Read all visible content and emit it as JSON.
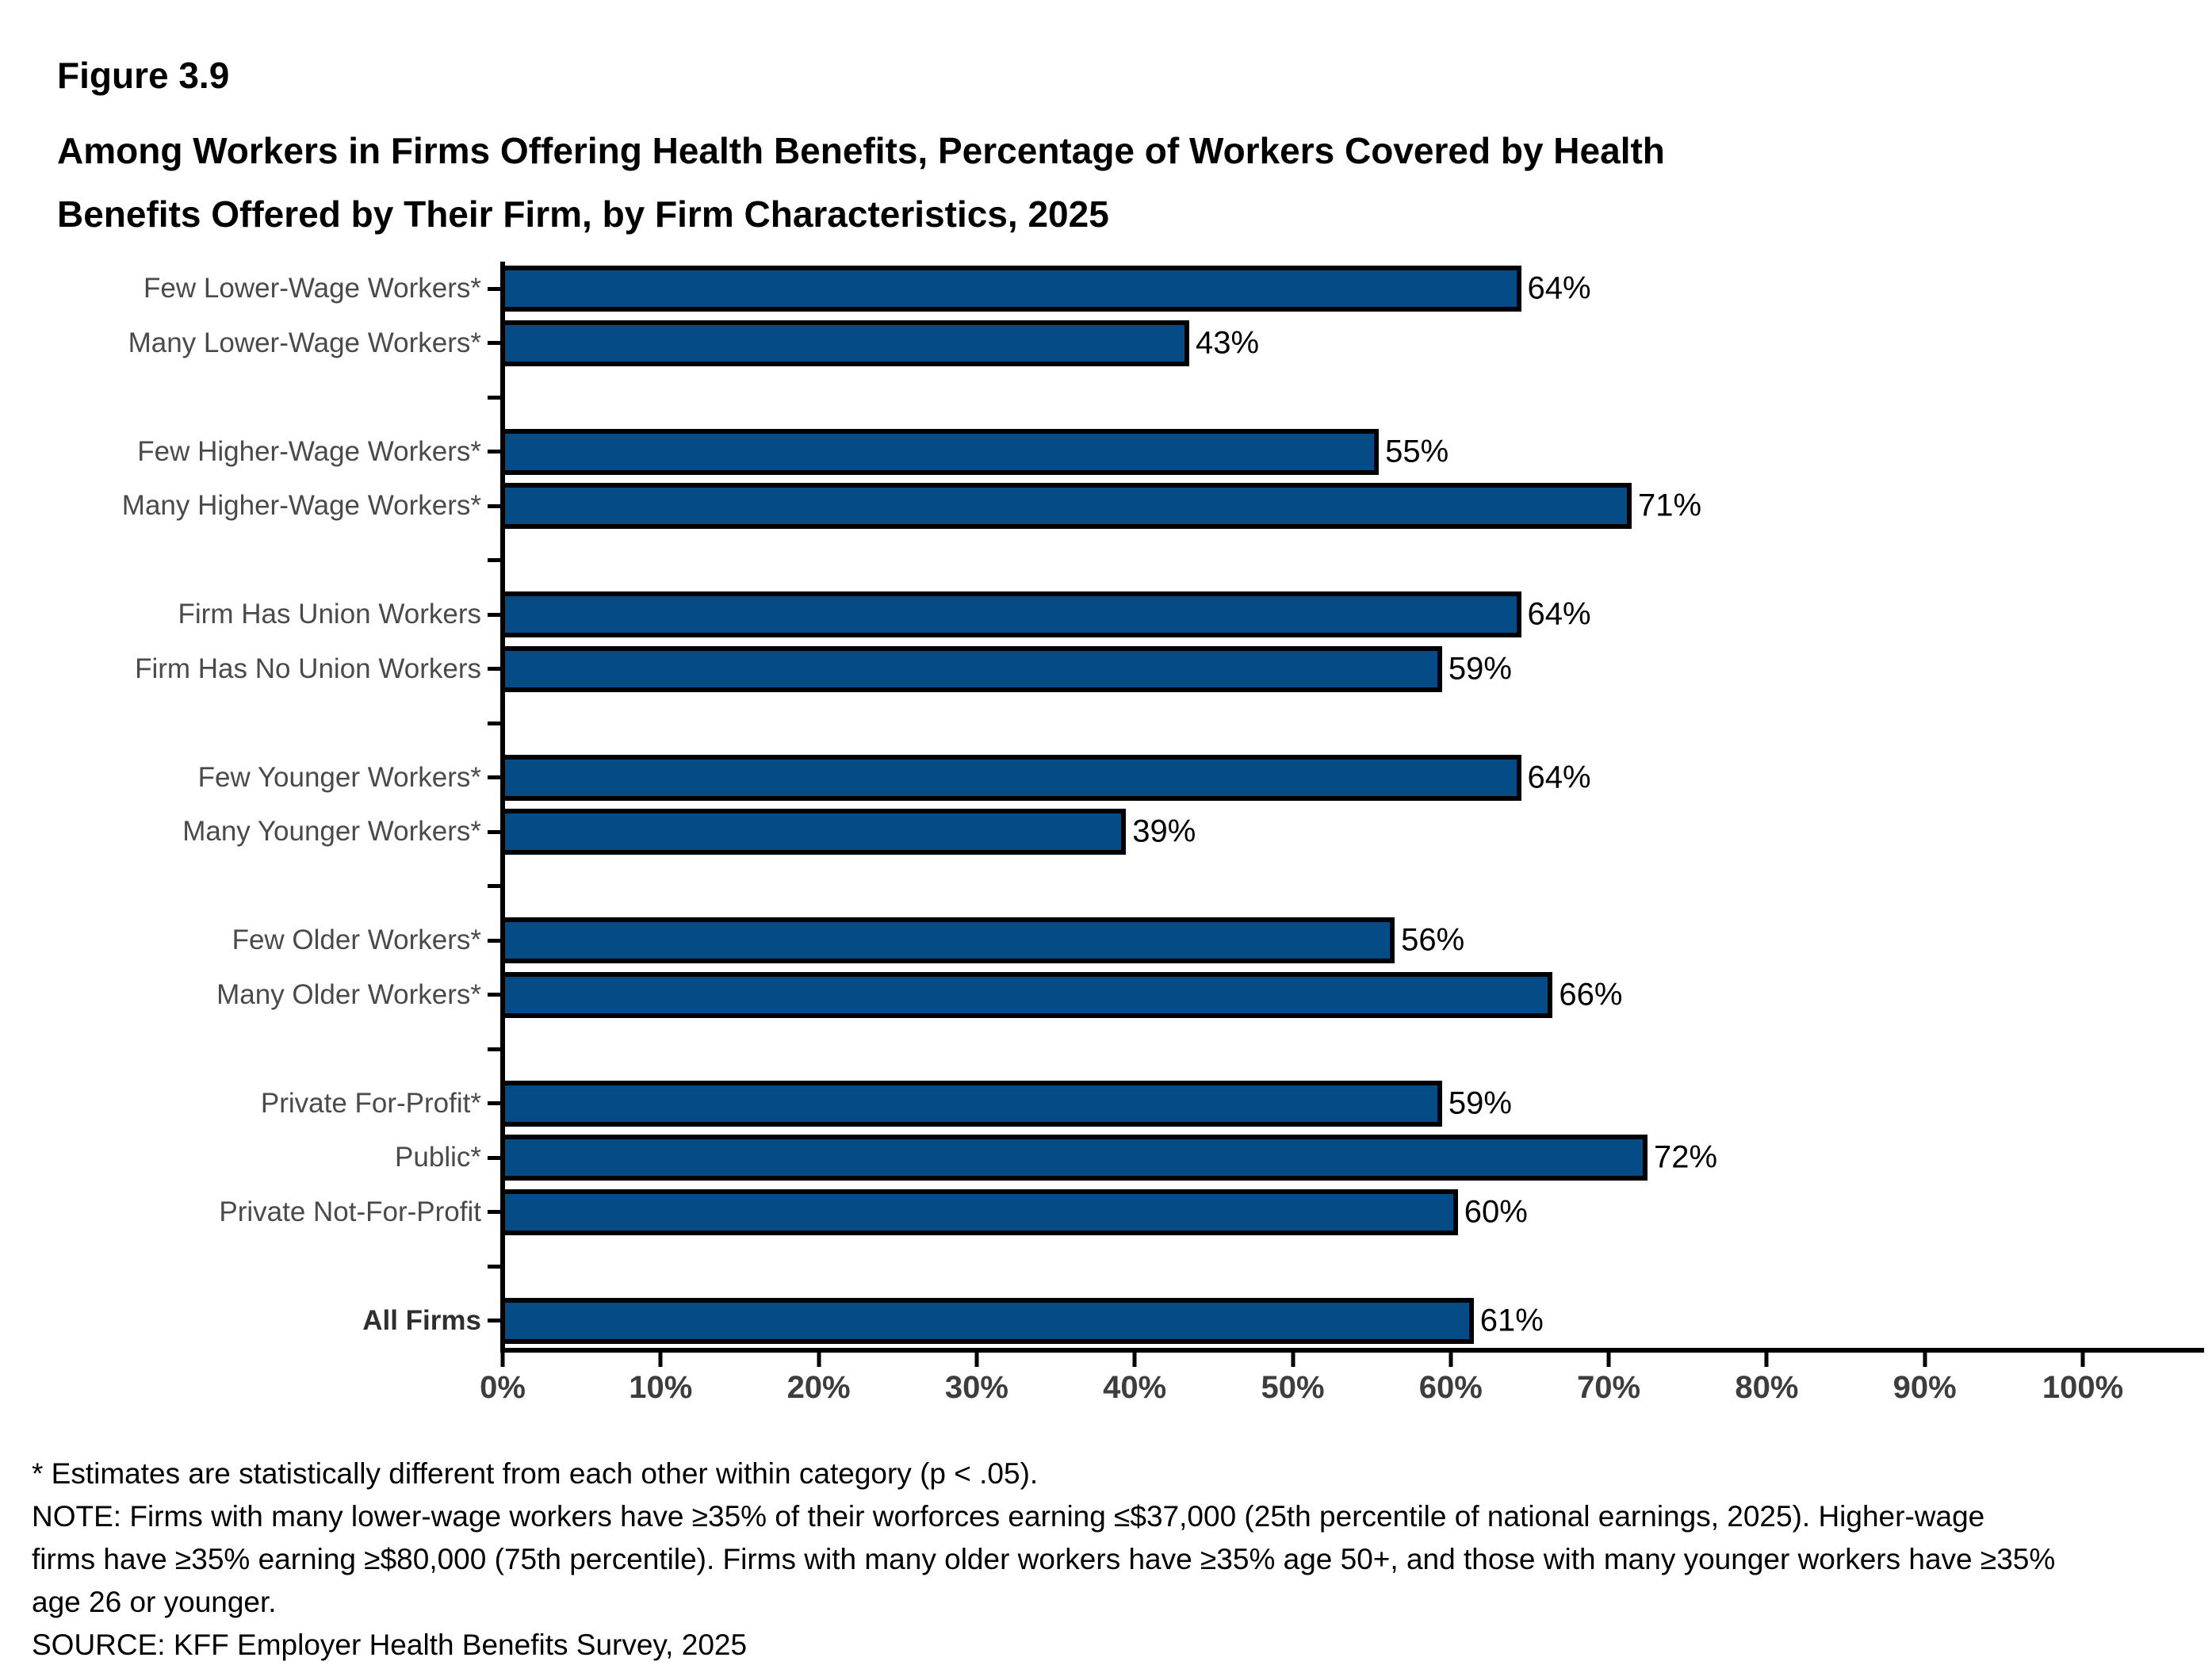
{
  "title": {
    "figure_label": "Figure 3.9",
    "lines": [
      "Among Workers in Firms Offering Health Benefits, Percentage of Workers Covered by Health",
      "Benefits Offered by Their Firm, by Firm Characteristics, 2025"
    ]
  },
  "chart_data": {
    "type": "bar",
    "orientation": "horizontal",
    "title": "Among Workers in Firms Offering Health Benefits, Percentage of Workers Covered by Health Benefits Offered by Their Firm, by Firm Characteristics, 2025",
    "xlim": [
      0,
      100
    ],
    "x_tick_labels": [
      "0%",
      "10%",
      "20%",
      "30%",
      "40%",
      "50%",
      "60%",
      "70%",
      "80%",
      "90%",
      "100%"
    ],
    "grid": false,
    "legend": "none",
    "bar_color": "#054c87",
    "bar_border_color": "#000000",
    "rows": [
      {
        "label": "Few Lower-Wage Workers*",
        "value": 64,
        "display": "64%"
      },
      {
        "label": "Many Lower-Wage Workers*",
        "value": 43,
        "display": "43%"
      },
      {
        "spacer": true
      },
      {
        "label": "Few Higher-Wage Workers*",
        "value": 55,
        "display": "55%"
      },
      {
        "label": "Many Higher-Wage Workers*",
        "value": 71,
        "display": "71%"
      },
      {
        "spacer": true
      },
      {
        "label": "Firm Has Union Workers",
        "value": 64,
        "display": "64%"
      },
      {
        "label": "Firm Has No Union Workers",
        "value": 59,
        "display": "59%"
      },
      {
        "spacer": true
      },
      {
        "label": "Few Younger Workers*",
        "value": 64,
        "display": "64%"
      },
      {
        "label": "Many Younger Workers*",
        "value": 39,
        "display": "39%"
      },
      {
        "spacer": true
      },
      {
        "label": "Few Older Workers*",
        "value": 56,
        "display": "56%"
      },
      {
        "label": "Many Older Workers*",
        "value": 66,
        "display": "66%"
      },
      {
        "spacer": true
      },
      {
        "label": "Private For-Profit*",
        "value": 59,
        "display": "59%"
      },
      {
        "label": "Public*",
        "value": 72,
        "display": "72%"
      },
      {
        "label": "Private Not-For-Profit",
        "value": 60,
        "display": "60%"
      },
      {
        "spacer": true
      },
      {
        "label": "All Firms",
        "value": 61,
        "display": "61%",
        "bold": true
      }
    ]
  },
  "footnotes": {
    "lines": [
      "* Estimates are statistically different from each other within category (p < .05).",
      "NOTE: Firms with many lower-wage workers have ≥35% of their worforces earning ≤$37,000 (25th percentile of national earnings, 2025). Higher-wage",
      "firms have ≥35% earning ≥$80,000 (75th percentile). Firms with many older workers have ≥35% age 50+, and those with many younger workers have ≥35%",
      "age 26 or younger.",
      "SOURCE: KFF Employer Health Benefits Survey, 2025"
    ]
  }
}
